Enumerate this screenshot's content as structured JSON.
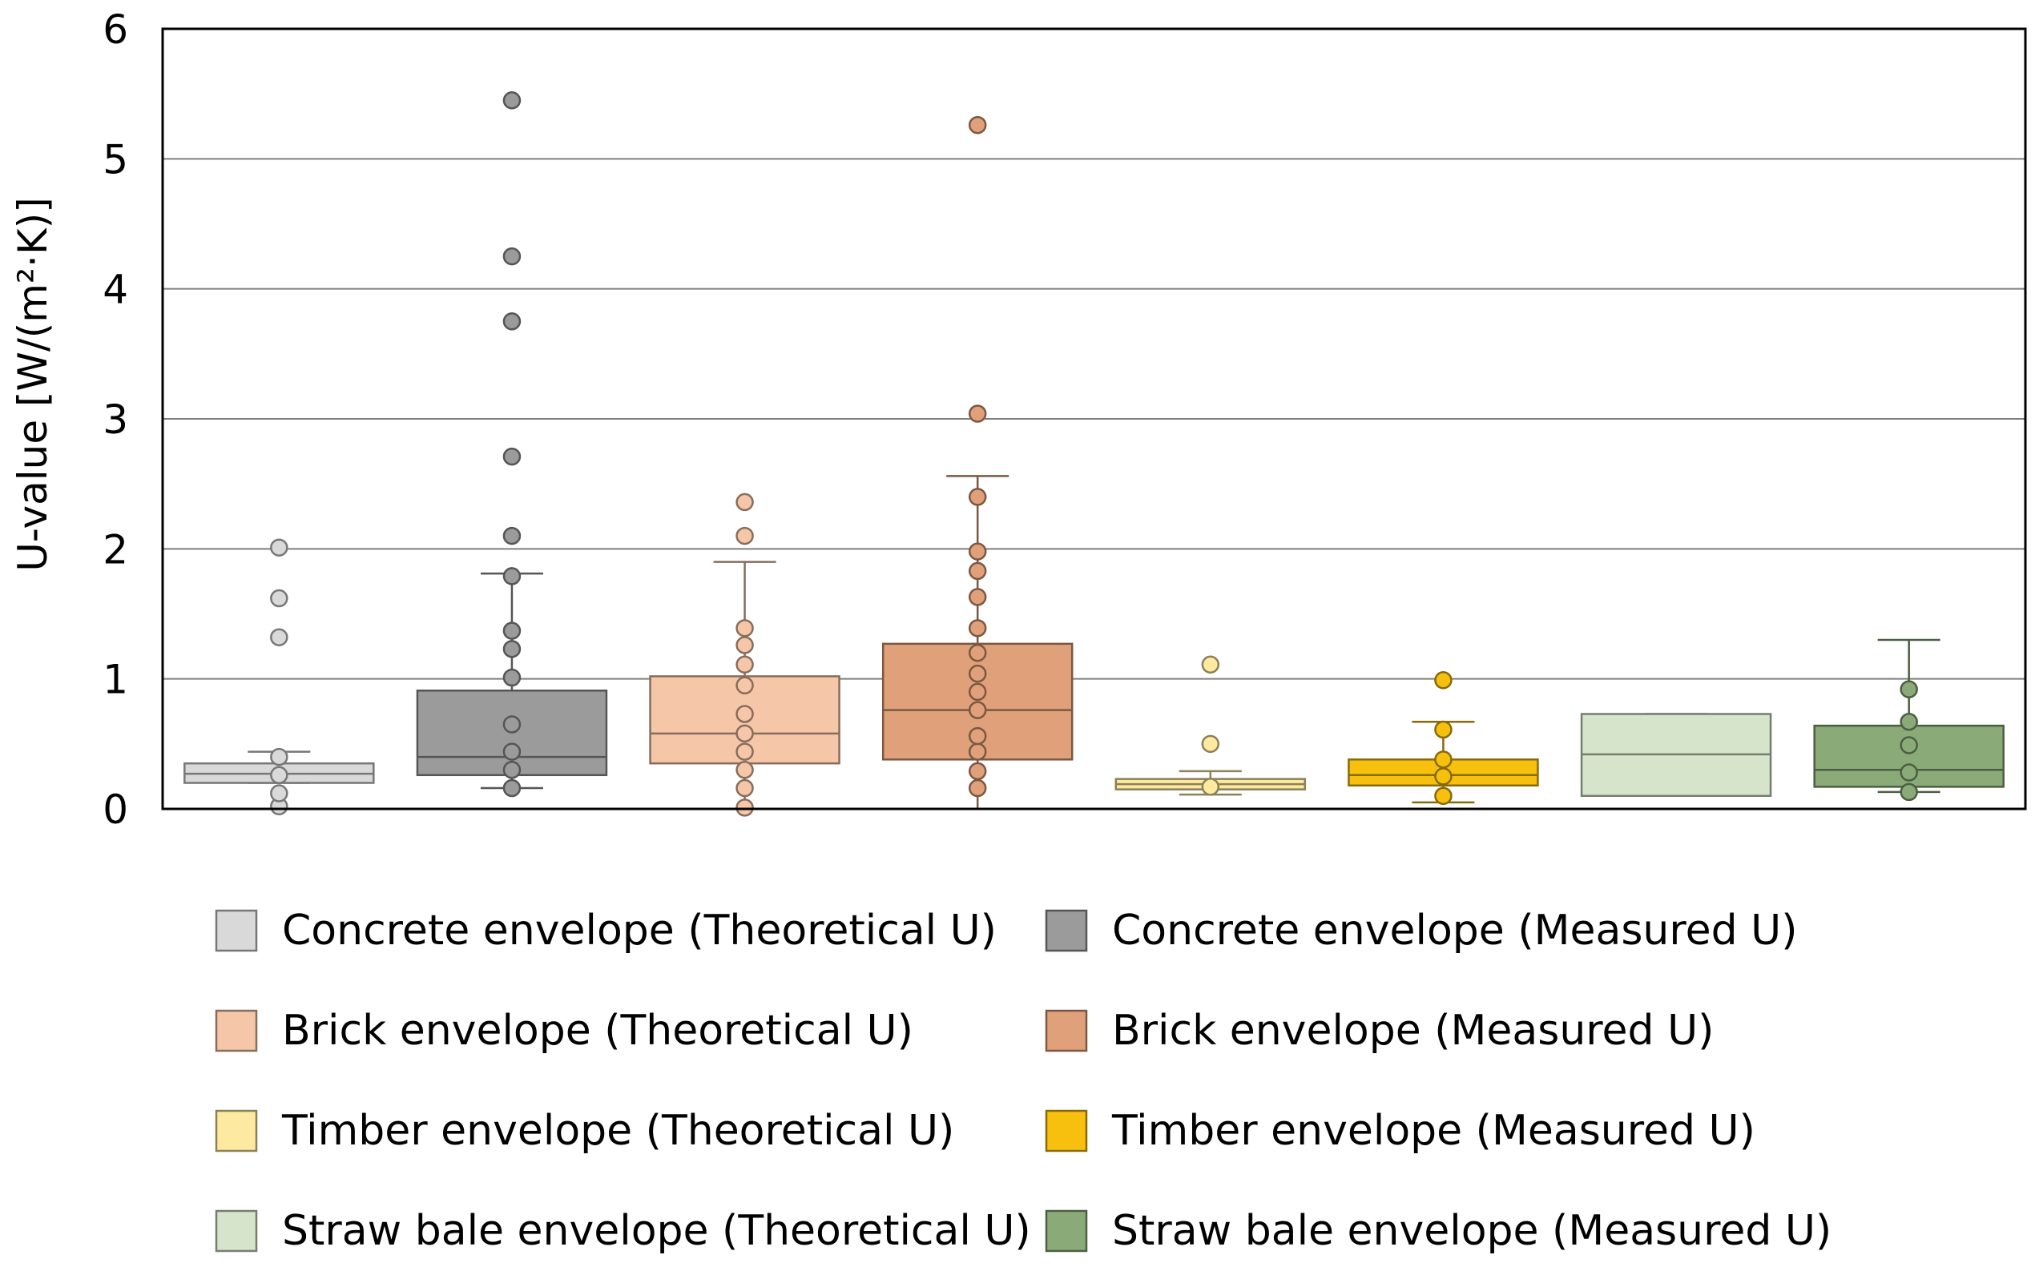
{
  "chart_data": {
    "type": "box",
    "title": "",
    "xlabel": "",
    "ylabel": "U-value [W/(m²·K)]",
    "ylim": [
      0,
      6
    ],
    "yticks": [
      "0",
      "1",
      "2",
      "3",
      "4",
      "5",
      "6"
    ],
    "grid": true,
    "series": [
      {
        "name": "Concrete envelope (Theoretical U)",
        "color": "#d9d9d9",
        "box": {
          "whisker_low": 0.2,
          "q1": 0.2,
          "median": 0.27,
          "q3": 0.35,
          "whisker_high": 0.44
        },
        "points": [
          0.02,
          0.12,
          0.26,
          0.4,
          1.32,
          1.62,
          2.01
        ]
      },
      {
        "name": "Concrete envelope (Measured U)",
        "color": "#9b9b9b",
        "box": {
          "whisker_low": 0.16,
          "q1": 0.26,
          "median": 0.4,
          "q3": 0.91,
          "whisker_high": 1.81
        },
        "points": [
          0.16,
          0.3,
          0.44,
          0.65,
          1.01,
          1.23,
          1.37,
          1.79,
          2.1,
          2.71,
          3.75,
          4.25,
          5.45
        ]
      },
      {
        "name": "Brick envelope (Theoretical U)",
        "color": "#f5c7a8",
        "box": {
          "whisker_low": 0.0,
          "q1": 0.35,
          "median": 0.58,
          "q3": 1.02,
          "whisker_high": 1.9
        },
        "points": [
          0.01,
          0.16,
          0.3,
          0.44,
          0.58,
          0.73,
          0.95,
          1.11,
          1.26,
          1.39,
          2.1,
          2.36
        ]
      },
      {
        "name": "Brick envelope (Measured U)",
        "color": "#e0a07a",
        "box": {
          "whisker_low": 0.0,
          "q1": 0.38,
          "median": 0.76,
          "q3": 1.27,
          "whisker_high": 2.56
        },
        "points": [
          0.16,
          0.29,
          0.44,
          0.56,
          0.76,
          0.9,
          1.04,
          1.2,
          1.39,
          1.63,
          1.83,
          1.98,
          2.4,
          3.04,
          5.26
        ]
      },
      {
        "name": "Timber envelope (Theoretical U)",
        "color": "#fde9a0",
        "box": {
          "whisker_low": 0.11,
          "q1": 0.15,
          "median": 0.19,
          "q3": 0.23,
          "whisker_high": 0.29
        },
        "points": [
          0.17,
          0.5,
          1.11
        ]
      },
      {
        "name": "Timber envelope (Measured U)",
        "color": "#f7c00e",
        "box": {
          "whisker_low": 0.05,
          "q1": 0.18,
          "median": 0.26,
          "q3": 0.38,
          "whisker_high": 0.67
        },
        "points": [
          0.1,
          0.25,
          0.38,
          0.61,
          0.99
        ]
      },
      {
        "name": "Straw bale envelope (Theoretical U)",
        "color": "#d5e4cb",
        "box": {
          "whisker_low": 0.1,
          "q1": 0.1,
          "median": 0.42,
          "q3": 0.73,
          "whisker_high": 0.73
        },
        "points": []
      },
      {
        "name": "Straw bale envelope (Measured U)",
        "color": "#8aab78",
        "box": {
          "whisker_low": 0.13,
          "q1": 0.17,
          "median": 0.3,
          "q3": 0.64,
          "whisker_high": 1.3
        },
        "points": [
          0.13,
          0.28,
          0.49,
          0.67,
          0.92
        ]
      }
    ]
  }
}
